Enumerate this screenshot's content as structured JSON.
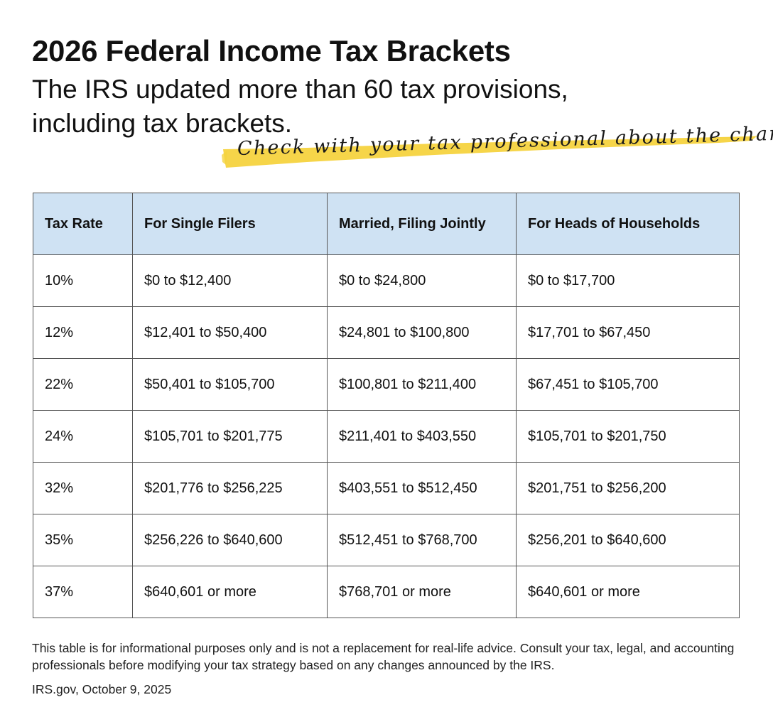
{
  "header": {
    "title": "2026 Federal Income Tax Brackets",
    "subtitle": "The IRS updated more than 60 tax provisions, including tax brackets.",
    "callout": "Check with your tax professional about the changes.",
    "highlight_color": "#f5d33f"
  },
  "table": {
    "header_bg": "#cfe2f3",
    "columns": [
      "Tax Rate",
      "For Single Filers",
      "Married, Filing Jointly",
      "For Heads of Households"
    ],
    "rows": [
      [
        "10%",
        "$0 to $12,400",
        "$0 to $24,800",
        "$0 to $17,700"
      ],
      [
        "12%",
        "$12,401 to $50,400",
        "$24,801 to $100,800",
        "$17,701 to $67,450"
      ],
      [
        "22%",
        "$50,401 to $105,700",
        "$100,801 to $211,400",
        "$67,451 to $105,700"
      ],
      [
        "24%",
        "$105,701 to $201,775",
        "$211,401 to $403,550",
        "$105,701 to $201,750"
      ],
      [
        "32%",
        "$201,776 to $256,225",
        "$403,551 to $512,450",
        "$201,751 to $256,200"
      ],
      [
        "35%",
        "$256,226 to $640,600",
        "$512,451 to $768,700",
        "$256,201 to $640,600"
      ],
      [
        "37%",
        "$640,601 or more",
        "$768,701 or more",
        "$640,601 or more"
      ]
    ]
  },
  "footer": {
    "disclaimer": "This table is for informational purposes only and is not a replacement for real-life advice. Consult your tax, legal, and accounting professionals before modifying your tax strategy based on any changes announced by the IRS.",
    "source": "IRS.gov, October 9, 2025"
  }
}
